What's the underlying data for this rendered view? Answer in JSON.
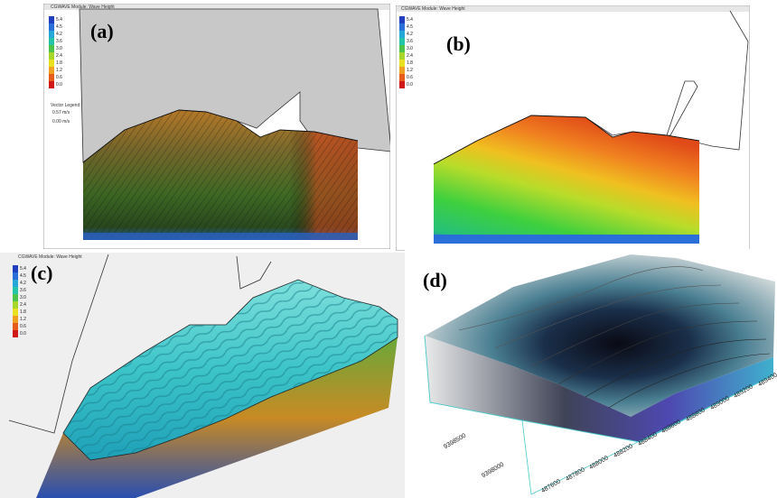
{
  "panels": [
    {
      "label": "(a)",
      "header": "CGWAVE Module: Wave Height"
    },
    {
      "label": "(b)",
      "header": "CGWAVE Module: Wave Height"
    },
    {
      "label": "(c)",
      "header": "CGWAVE Module: Wave Height"
    },
    {
      "label": "(d)"
    }
  ],
  "legend": {
    "values": [
      "5.4",
      "4.5",
      "4.2",
      "3.6",
      "3.0",
      "2.4",
      "1.8",
      "1.2",
      "0.6",
      "0.0"
    ],
    "colors": [
      "#1f3fbf",
      "#2a6fd8",
      "#25a7d8",
      "#24c4a8",
      "#4cc44c",
      "#a6d62a",
      "#e8e020",
      "#f0a020",
      "#e85c1a",
      "#d01818"
    ]
  },
  "vector_legend": {
    "title": "Vector Legend",
    "items": [
      "0.57 m/s",
      "0.00 m/s"
    ]
  },
  "panel_d_axes": {
    "x_ticks": [
      "487600",
      "487800",
      "488000",
      "488200",
      "488400",
      "488600",
      "488800",
      "489000",
      "489200",
      "489400"
    ],
    "y_ticks": [
      "9398500",
      "9398000"
    ]
  }
}
